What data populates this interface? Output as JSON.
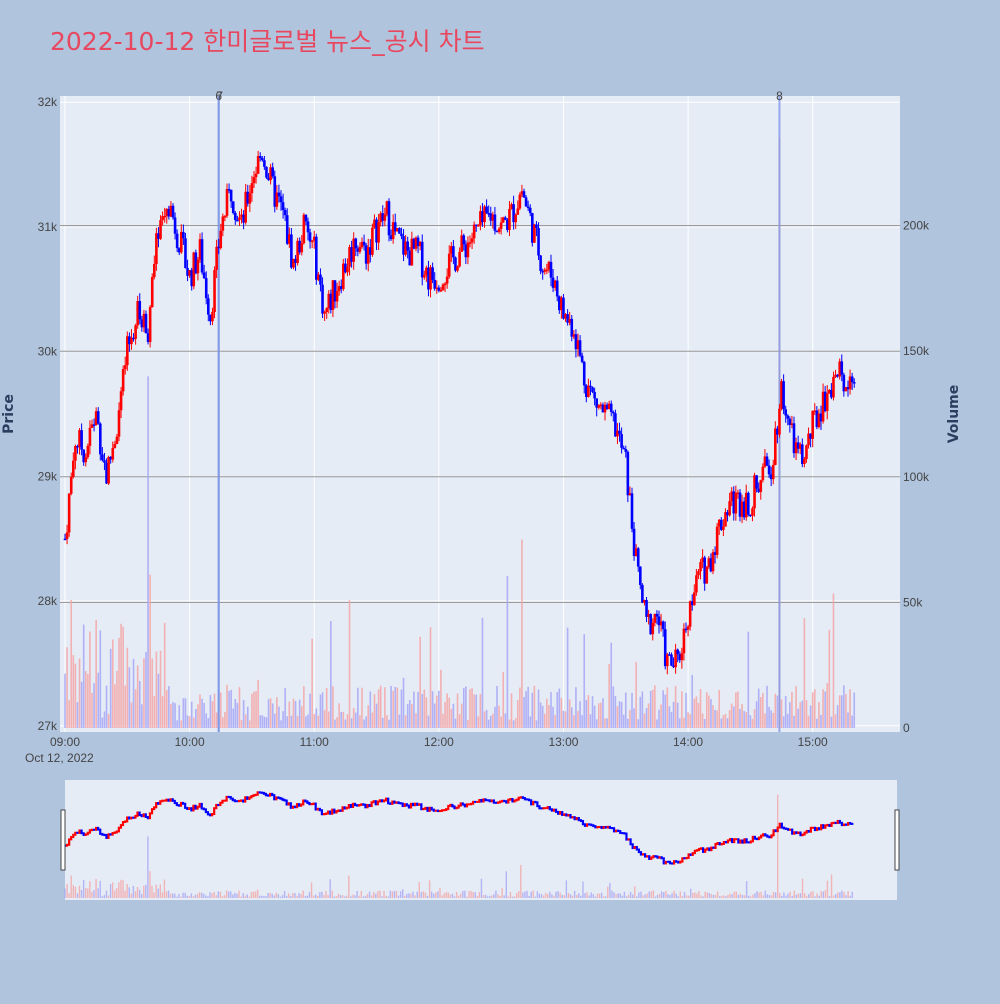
{
  "chart_data": {
    "type": "candlestick",
    "title": "2022-10-12 한미글로벌 뉴스_공시 차트",
    "date_label": "Oct 12, 2022",
    "y_axis": {
      "label": "Price",
      "range": [
        26950,
        32050
      ],
      "ticks": [
        27000,
        28000,
        29000,
        30000,
        31000,
        32000
      ],
      "tick_labels": [
        "27k",
        "28k",
        "29k",
        "30k",
        "31k",
        "32k"
      ]
    },
    "y2_axis": {
      "label": "Volume",
      "range": [
        0,
        250000
      ],
      "ticks": [
        0,
        50000,
        100000,
        150000,
        200000
      ],
      "tick_labels": [
        "0",
        "50k",
        "100k",
        "150k",
        "200k"
      ]
    },
    "x_axis": {
      "start": "09:00",
      "end": "15:30",
      "tick_labels": [
        "09:00",
        "10:00",
        "11:00",
        "12:00",
        "13:00",
        "14:00",
        "15:00"
      ]
    },
    "colors": {
      "up": "#ff0000",
      "down": "#0000ff",
      "up_volume": "#f4a6a6",
      "down_volume": "#a6a6f4",
      "title": "#e8485f",
      "plot_bg": "#e5ecf6",
      "page_bg": "#b0c4de"
    },
    "grid": true,
    "news_markers": [
      {
        "time": "10:14",
        "label": "6"
      },
      {
        "time": "10:14",
        "label": "7"
      },
      {
        "time": "14:44",
        "label": "8"
      }
    ],
    "price_keypoints": [
      [
        "09:00",
        28500
      ],
      [
        "09:05",
        29300
      ],
      [
        "09:10",
        29200
      ],
      [
        "09:15",
        29500
      ],
      [
        "09:20",
        29000
      ],
      [
        "09:25",
        29400
      ],
      [
        "09:30",
        30000
      ],
      [
        "09:35",
        30300
      ],
      [
        "09:40",
        30200
      ],
      [
        "09:45",
        31000
      ],
      [
        "09:50",
        31200
      ],
      [
        "09:55",
        30900
      ],
      [
        "10:00",
        30600
      ],
      [
        "10:05",
        30800
      ],
      [
        "10:10",
        30300
      ],
      [
        "10:15",
        31000
      ],
      [
        "10:20",
        31300
      ],
      [
        "10:25",
        31000
      ],
      [
        "10:30",
        31400
      ],
      [
        "10:35",
        31600
      ],
      [
        "10:40",
        31300
      ],
      [
        "10:45",
        31100
      ],
      [
        "10:50",
        30700
      ],
      [
        "10:55",
        31000
      ],
      [
        "11:00",
        30800
      ],
      [
        "11:05",
        30300
      ],
      [
        "11:10",
        30500
      ],
      [
        "11:15",
        30700
      ],
      [
        "11:20",
        30900
      ],
      [
        "11:25",
        30800
      ],
      [
        "11:30",
        31000
      ],
      [
        "11:35",
        31100
      ],
      [
        "11:40",
        30900
      ],
      [
        "11:45",
        30800
      ],
      [
        "11:50",
        30800
      ],
      [
        "11:55",
        30600
      ],
      [
        "12:00",
        30600
      ],
      [
        "12:05",
        30700
      ],
      [
        "12:10",
        30800
      ],
      [
        "12:15",
        30900
      ],
      [
        "12:20",
        31000
      ],
      [
        "12:25",
        31100
      ],
      [
        "12:30",
        31000
      ],
      [
        "12:35",
        31100
      ],
      [
        "12:40",
        31300
      ],
      [
        "12:45",
        31000
      ],
      [
        "12:50",
        30700
      ],
      [
        "12:55",
        30600
      ],
      [
        "13:00",
        30300
      ],
      [
        "13:05",
        30200
      ],
      [
        "13:10",
        29800
      ],
      [
        "13:15",
        29600
      ],
      [
        "13:20",
        29500
      ],
      [
        "13:25",
        29400
      ],
      [
        "13:30",
        29100
      ],
      [
        "13:35",
        28300
      ],
      [
        "13:40",
        27800
      ],
      [
        "13:45",
        27900
      ],
      [
        "13:50",
        27500
      ],
      [
        "13:55",
        27500
      ],
      [
        "14:00",
        27900
      ],
      [
        "14:05",
        28200
      ],
      [
        "14:10",
        28300
      ],
      [
        "14:15",
        28600
      ],
      [
        "14:20",
        28800
      ],
      [
        "14:25",
        28800
      ],
      [
        "14:30",
        28800
      ],
      [
        "14:35",
        29000
      ],
      [
        "14:40",
        29100
      ],
      [
        "14:45",
        29700
      ],
      [
        "14:50",
        29300
      ],
      [
        "14:55",
        29100
      ],
      [
        "15:00",
        29400
      ],
      [
        "15:05",
        29600
      ],
      [
        "15:10",
        29800
      ],
      [
        "15:15",
        29800
      ],
      [
        "15:20",
        29800
      ]
    ]
  }
}
